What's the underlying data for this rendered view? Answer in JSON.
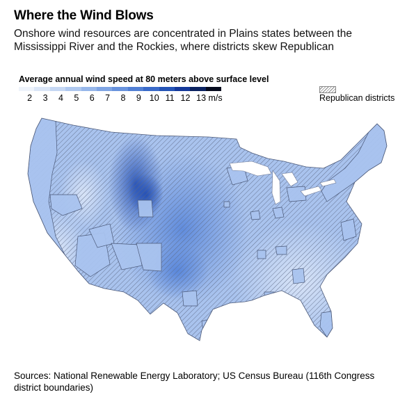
{
  "header": {
    "title": "Where the Wind Blows",
    "subtitle": "Onshore wind resources are concentrated in Plains states between the Mississippi River and the Rockies, where districts skew Republican"
  },
  "legend": {
    "title": "Average annual wind speed at 80 meters above surface level",
    "ticks": [
      "2",
      "3",
      "4",
      "5",
      "6",
      "7",
      "8",
      "9",
      "10",
      "11",
      "12",
      "13 m/s"
    ],
    "colors": [
      "#eef3fb",
      "#dbe6f7",
      "#c5d7f3",
      "#afc8ef",
      "#97b7ea",
      "#7fa5e4",
      "#6993dd",
      "#517fd4",
      "#3a6ac9",
      "#2554b6",
      "#14389a",
      "#0b2260",
      "#050a1c"
    ],
    "republican_label": "Republican districts"
  },
  "map": {
    "region": "Contiguous United States",
    "base_color": "#a9c3ee",
    "hatch_color": "#5d6a86",
    "high_wind_color": "#1d49b0"
  },
  "footer": {
    "sources": "Sources: National Renewable Energy Laboratory; US Census Bureau (116th Congress district boundaries)"
  }
}
